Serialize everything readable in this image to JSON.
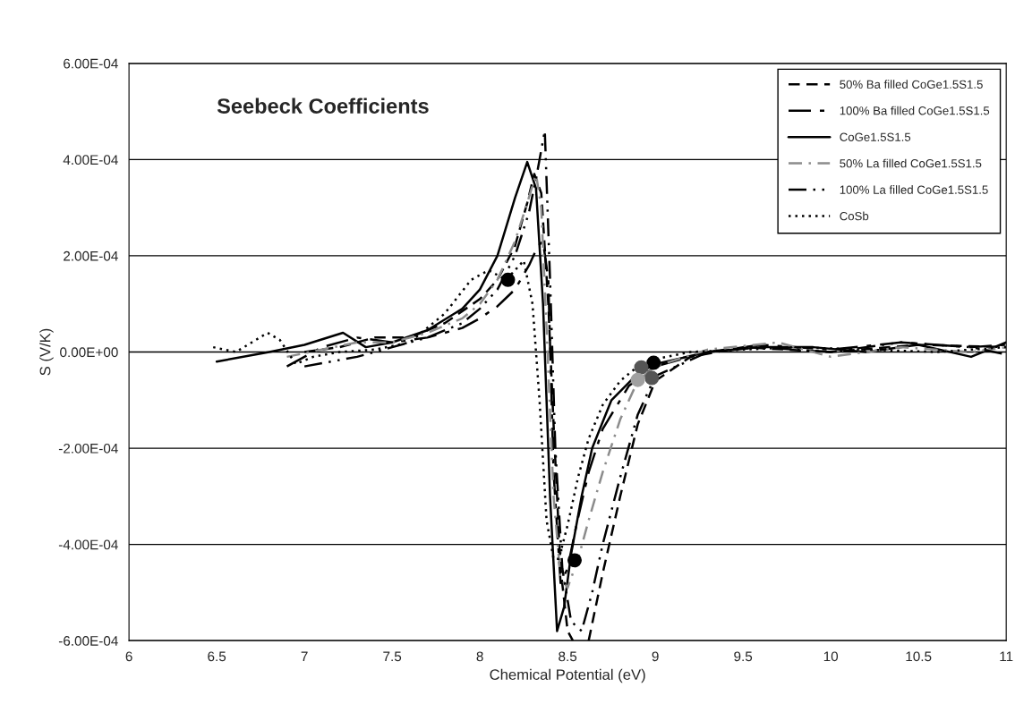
{
  "chart_data": {
    "type": "line",
    "title": "Seebeck Coefficients",
    "xlabel": "Chemical Potential (eV)",
    "ylabel": "S (V/K)",
    "xlim": [
      6,
      11
    ],
    "xticks": [
      6,
      6.5,
      7,
      7.5,
      8,
      8.5,
      9,
      9.5,
      10,
      10.5,
      11
    ],
    "ylim": [
      -0.0006,
      0.0006
    ],
    "yticks": [
      {
        "value": -0.0006,
        "label": "-6.00E-04"
      },
      {
        "value": -0.0004,
        "label": "-4.00E-04"
      },
      {
        "value": -0.0002,
        "label": "-2.00E-04"
      },
      {
        "value": 0,
        "label": "0.00E+00"
      },
      {
        "value": 0.0002,
        "label": "2.00E-04"
      },
      {
        "value": 0.0004,
        "label": "4.00E-04"
      },
      {
        "value": 0.0006,
        "label": "6.00E-04"
      }
    ],
    "grid": "y",
    "legend": "top right",
    "marker": "none",
    "series": [
      {
        "name": "50% Ba filled CoGe1.5S1.5",
        "color": "#000000",
        "line_style": "dashed",
        "x": [
          7.0,
          7.2,
          7.4,
          7.6,
          7.8,
          8.0,
          8.1,
          8.2,
          8.27,
          8.31,
          8.35,
          8.39,
          8.42,
          8.46,
          8.5,
          8.53,
          8.57,
          8.62,
          8.7,
          8.8,
          8.9,
          9.0,
          9.2,
          9.5,
          10.0,
          10.5,
          11.0
        ],
        "values": [
          0.0,
          1e-05,
          3e-05,
          3e-05,
          6e-05,
          0.00011,
          0.00015,
          0.00022,
          0.00031,
          0.00037,
          0.00033,
          0.0001,
          -0.00015,
          -0.00045,
          -0.00058,
          -0.0006,
          null,
          -0.0006,
          -0.00046,
          -0.0003,
          -0.00015,
          -6e-05,
          -1e-05,
          1e-05,
          0.0,
          1.5e-05,
          1e-05
        ]
      },
      {
        "name": "100% Ba filled CoGe1.5S1.5",
        "color": "#000000",
        "line_style": "longdashdot",
        "x": [
          6.9,
          7.1,
          7.3,
          7.5,
          7.7,
          7.9,
          8.0,
          8.1,
          8.2,
          8.28,
          8.33,
          8.36,
          8.39,
          8.42,
          8.46,
          8.5,
          8.55,
          8.62,
          8.7,
          8.85,
          9.0,
          9.3,
          9.6,
          10.0,
          10.4,
          10.8,
          11.0
        ],
        "values": [
          -3e-05,
          1e-05,
          3e-05,
          2e-05,
          3e-05,
          5e-05,
          7e-05,
          9.5e-05,
          0.00013,
          0.00018,
          0.00022,
          0.00023,
          0.00015,
          -0.00025,
          -0.00048,
          -0.00045,
          -0.00036,
          -0.00025,
          -0.00016,
          -7e-05,
          -3e-05,
          0.0,
          1.5e-05,
          5e-06,
          2e-05,
          1e-05,
          1.5e-05
        ]
      },
      {
        "name": "CoGe1.5S1.5",
        "color": "#000000",
        "line_style": "solid",
        "x": [
          6.5,
          6.8,
          7.0,
          7.22,
          7.35,
          7.5,
          7.7,
          7.9,
          8.0,
          8.1,
          8.2,
          8.27,
          8.32,
          8.36,
          8.4,
          8.44,
          8.48,
          8.52,
          8.58,
          8.64,
          8.75,
          8.9,
          9.0,
          9.3,
          9.6,
          9.9,
          10.2,
          10.5,
          10.8,
          11.0
        ],
        "values": [
          -2e-05,
          0.0,
          1.5e-05,
          4e-05,
          1e-05,
          2e-05,
          4.5e-05,
          9e-05,
          0.00013,
          0.0002,
          0.00032,
          0.000395,
          0.00034,
          0.0001,
          -0.0003,
          -0.00058,
          -0.00053,
          -0.00042,
          -0.0003,
          -0.0002,
          -0.0001,
          -4.5e-05,
          -2.5e-05,
          0.0,
          1e-05,
          1e-05,
          0.0,
          1.5e-05,
          -1e-05,
          2e-05
        ]
      },
      {
        "name": "50% La filled CoGe1.5S1.5",
        "color": "#8c8c8c",
        "line_style": "dashdot",
        "x": [
          6.9,
          7.1,
          7.3,
          7.5,
          7.7,
          7.9,
          8.0,
          8.1,
          8.2,
          8.27,
          8.32,
          8.35,
          8.38,
          8.42,
          8.46,
          8.5,
          8.56,
          8.62,
          8.7,
          8.8,
          8.9,
          9.0,
          9.3,
          9.7,
          10.0,
          10.4,
          10.8,
          11.0
        ],
        "values": [
          -1e-05,
          5e-06,
          2e-05,
          2e-05,
          4e-05,
          7e-05,
          0.0001,
          0.00015,
          0.00023,
          0.00031,
          0.00037,
          0.0003,
          5e-05,
          -0.0003,
          -0.00047,
          -0.00049,
          -0.00043,
          -0.00035,
          -0.00025,
          -0.00014,
          -6e-05,
          -3e-05,
          5e-06,
          2e-05,
          -1e-05,
          1e-05,
          0.0,
          1e-05
        ]
      },
      {
        "name": "100% La filled CoGe1.5S1.5",
        "color": "#000000",
        "line_style": "dashdotdot",
        "x": [
          7.0,
          7.3,
          7.5,
          7.7,
          7.9,
          8.0,
          8.1,
          8.2,
          8.28,
          8.33,
          8.37,
          8.4,
          8.43,
          8.47,
          8.52,
          8.58,
          8.64,
          8.7,
          8.8,
          8.9,
          9.0,
          9.3,
          9.6,
          10.0,
          10.4,
          10.8,
          11.0
        ],
        "values": [
          -3e-05,
          -1e-05,
          1e-05,
          3e-05,
          6e-05,
          9e-05,
          0.00013,
          0.0002,
          0.00029,
          0.00038,
          0.00046,
          0.00015,
          -0.0002,
          -0.00045,
          -0.00056,
          -0.00058,
          -0.0005,
          -0.0004,
          -0.00026,
          -0.00013,
          -5e-05,
          0.0,
          1e-05,
          0.0,
          2e-05,
          1e-05,
          -5e-06
        ]
      },
      {
        "name": "CoSb",
        "color": "#000000",
        "line_style": "dotted",
        "x": [
          6.48,
          6.61,
          6.7,
          6.79,
          6.86,
          6.95,
          7.05,
          7.2,
          7.4,
          7.6,
          7.8,
          7.95,
          8.05,
          8.15,
          8.25,
          8.3,
          8.34,
          8.38,
          8.42,
          8.45,
          8.5,
          8.56,
          8.62,
          8.7,
          8.8,
          8.9,
          9.0,
          9.2,
          9.5,
          9.8,
          10.2,
          10.6,
          11.0
        ],
        "values": [
          1e-05,
          0.0,
          2e-05,
          4e-05,
          2.5e-05,
          -2.5e-05,
          -1e-05,
          0.0,
          5e-06,
          2e-05,
          8e-05,
          0.00015,
          0.00017,
          0.00015,
          0.00019,
          0.0001,
          -0.0001,
          -0.00035,
          -0.00043,
          -0.00043,
          -0.00036,
          -0.00026,
          -0.00018,
          -0.00011,
          -6e-05,
          -3e-05,
          -1.5e-05,
          0.0,
          5e-06,
          1e-05,
          5e-06,
          0.0,
          1e-05
        ]
      },
      {
        "type": "scatter",
        "marker": "circle",
        "x": [
          8.16,
          8.54,
          8.99,
          8.92,
          8.98,
          8.9
        ],
        "values": [
          0.00015,
          -0.000433,
          -2.25e-05,
          -3.2e-05,
          -5.4e-05,
          -5.8e-05
        ],
        "colors": [
          "#000000",
          "#000000",
          "#000000",
          "#555555",
          "#555555",
          "#a0a0a0"
        ]
      }
    ]
  }
}
